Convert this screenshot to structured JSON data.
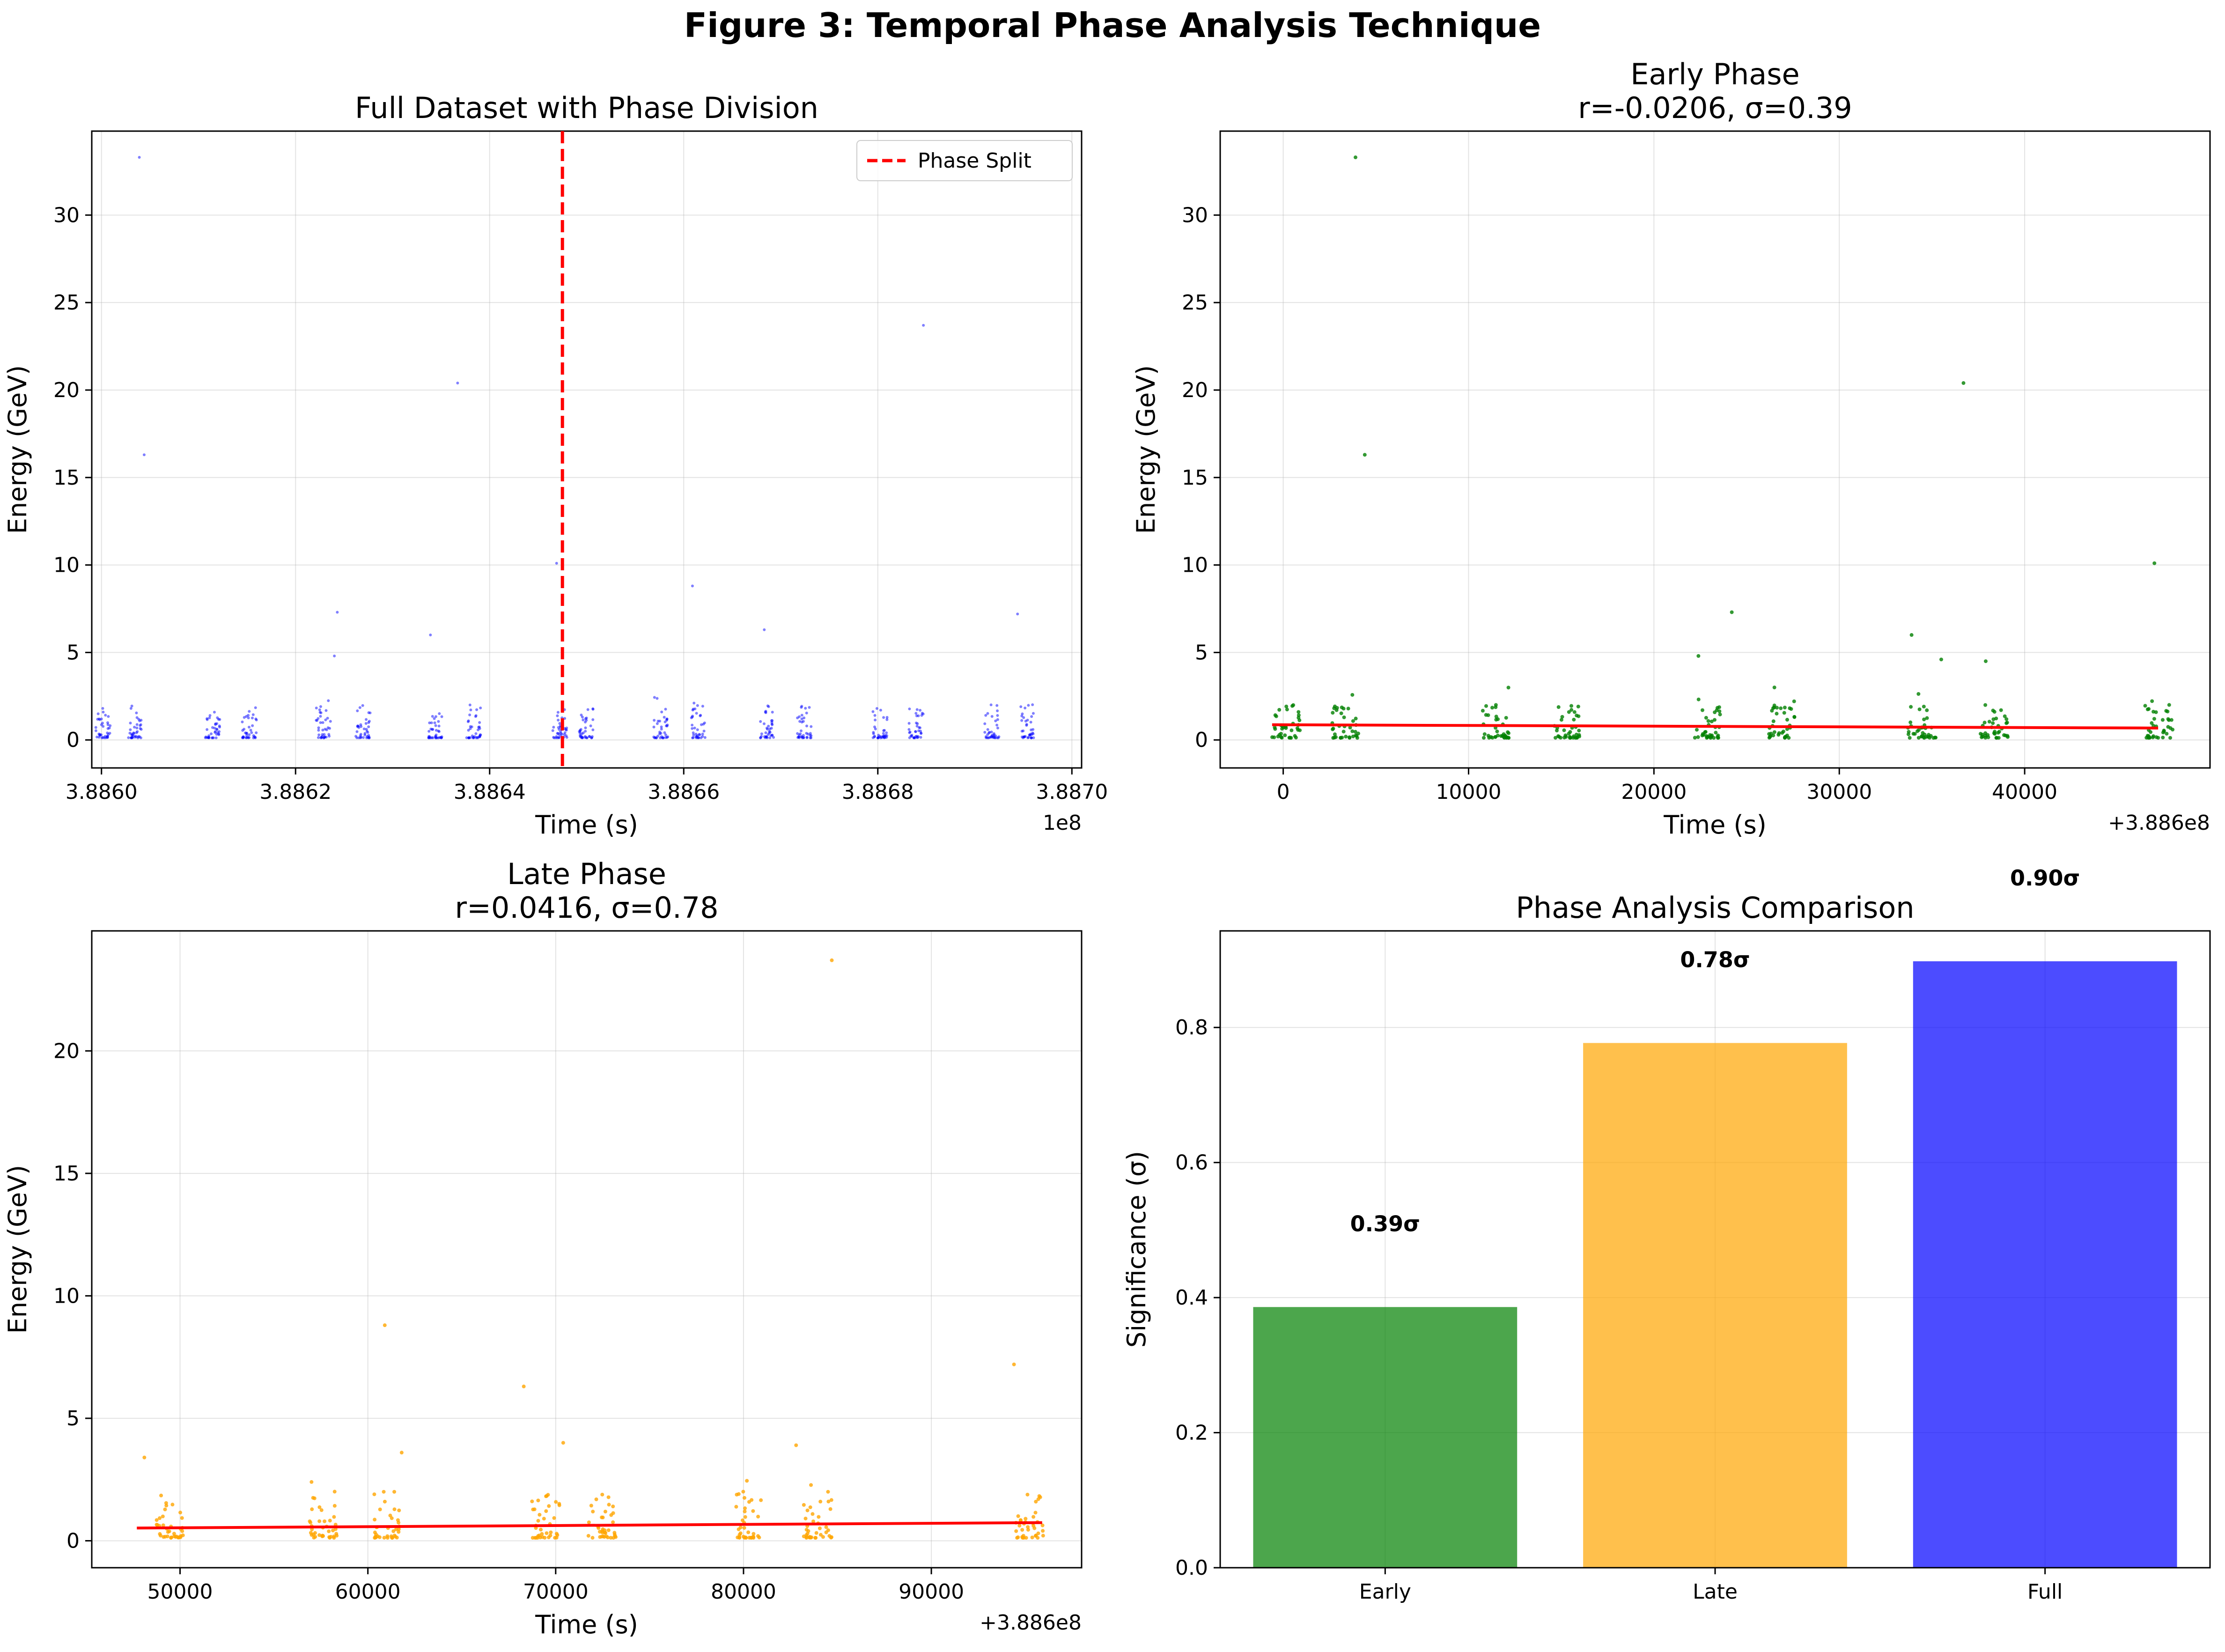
{
  "figure_title": "Figure 3: Temporal Phase Analysis Technique",
  "colors": {
    "full": "#0000ff",
    "early": "#008000",
    "late": "#ffa500",
    "fit": "#ff0000",
    "split": "#ff0000",
    "grid": "#b0b0b0"
  },
  "chart_data": [
    {
      "id": "full",
      "type": "scatter",
      "title": "Full Dataset with Phase Division",
      "xlabel": "Time (s)",
      "ylabel": "Energy (GeV)",
      "x_offset_text": "1e8",
      "xlim": [
        388599000.0,
        388701000.0
      ],
      "ylim": [
        -1.6,
        34.8
      ],
      "xticks": [
        388600000.0,
        388620000.0,
        388640000.0,
        388660000.0,
        388680000.0,
        388700000.0
      ],
      "xtick_labels": [
        "3.8860",
        "3.8862",
        "3.8864",
        "3.8866",
        "3.8868",
        "3.8870"
      ],
      "yticks": [
        0,
        5,
        10,
        15,
        20,
        25,
        30
      ],
      "ytick_labels": [
        "0",
        "5",
        "10",
        "15",
        "20",
        "25",
        "30"
      ],
      "split_x": 388647500,
      "legend": {
        "label": "Phase Split",
        "position": "upper right"
      },
      "grid": true,
      "cluster_base": 388600000,
      "clusters_x": [
        -300,
        2900,
        11000,
        14800,
        22400,
        26500,
        34000,
        37900,
        46800,
        49500,
        57200,
        61000,
        68200,
        72000,
        79800,
        83500,
        91300,
        95000
      ],
      "outliers_x": [
        388603900,
        388604400,
        388636700,
        388684700,
        388660900,
        388624300,
        388633900,
        388694400,
        388646900,
        388668300,
        388624000
      ],
      "outliers_y": [
        33.3,
        16.3,
        20.4,
        23.7,
        8.8,
        7.3,
        6.0,
        7.2,
        10.1,
        6.3,
        4.8
      ]
    },
    {
      "id": "early",
      "type": "scatter",
      "title": "Early Phase",
      "subtitle": "r=-0.0206, σ=0.39",
      "xlabel": "Time (s)",
      "ylabel": "Energy (GeV)",
      "x_offset_text": "+3.886e8",
      "xlim": [
        -3400,
        50000
      ],
      "ylim": [
        -1.6,
        34.8
      ],
      "xticks": [
        0,
        10000,
        20000,
        30000,
        40000
      ],
      "xtick_labels": [
        "0",
        "10000",
        "20000",
        "30000",
        "40000"
      ],
      "yticks": [
        0,
        5,
        10,
        15,
        20,
        25,
        30
      ],
      "ytick_labels": [
        "0",
        "5",
        "10",
        "15",
        "20",
        "25",
        "30"
      ],
      "fit_line": {
        "x": [
          -600,
          47200
        ],
        "y": [
          0.87,
          0.68
        ]
      },
      "grid": true,
      "cluster_base": 0,
      "clusters_x": [
        -300,
        2900,
        11000,
        14800,
        22400,
        26500,
        34000,
        37900,
        46800
      ],
      "outliers_x": [
        3900,
        4400,
        36700,
        24200,
        33900,
        47000,
        22400,
        26500,
        35500,
        37900
      ],
      "outliers_y": [
        33.3,
        16.3,
        20.4,
        7.3,
        6.0,
        10.1,
        4.8,
        3.0,
        4.6,
        4.5
      ]
    },
    {
      "id": "late",
      "type": "scatter",
      "title": "Late Phase",
      "subtitle": "r=0.0416, σ=0.78",
      "xlabel": "Time (s)",
      "ylabel": "Energy (GeV)",
      "x_offset_text": "+3.886e8",
      "xlim": [
        45300,
        98000
      ],
      "ylim": [
        -1.1,
        24.9
      ],
      "xticks": [
        50000,
        60000,
        70000,
        80000,
        90000
      ],
      "xtick_labels": [
        "50000",
        "60000",
        "70000",
        "80000",
        "90000"
      ],
      "yticks": [
        0,
        5,
        10,
        15,
        20
      ],
      "ytick_labels": [
        "0",
        "5",
        "10",
        "15",
        "20"
      ],
      "fit_line": {
        "x": [
          47700,
          95900
        ],
        "y": [
          0.52,
          0.74
        ]
      },
      "grid": true,
      "cluster_base": 0,
      "clusters_x": [
        49000,
        57200,
        60500,
        69000,
        72000,
        79800,
        83500,
        94800
      ],
      "outliers_x": [
        84700,
        60900,
        68300,
        94400,
        70400,
        82800,
        48100,
        61800,
        57000,
        84500
      ],
      "outliers_y": [
        23.7,
        8.8,
        6.3,
        7.2,
        4.0,
        3.9,
        3.4,
        3.6,
        2.4,
        2.0
      ]
    },
    {
      "id": "comparison",
      "type": "bar",
      "title": "Phase Analysis Comparison",
      "xlabel": "",
      "ylabel": "Significance (σ)",
      "categories": [
        "Early",
        "Late",
        "Full"
      ],
      "values": [
        0.386,
        0.777,
        0.898
      ],
      "value_labels": [
        "0.39σ",
        "0.78σ",
        "0.90σ"
      ],
      "bar_colors": [
        "#008000",
        "#ffa500",
        "#0000ff"
      ],
      "ylim": [
        0,
        0.943
      ],
      "yticks": [
        0,
        0.2,
        0.4,
        0.6,
        0.8
      ],
      "ytick_labels": [
        "0.0",
        "0.2",
        "0.4",
        "0.6",
        "0.8"
      ],
      "grid": true
    }
  ]
}
